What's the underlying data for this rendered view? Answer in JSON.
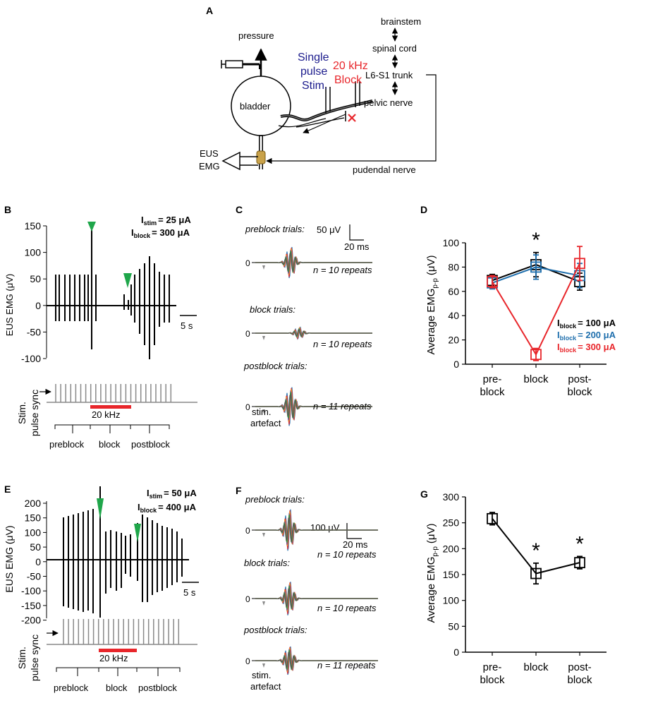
{
  "panels": {
    "A": {
      "letter": "A",
      "pressure": "pressure",
      "bladder": "bladder",
      "single_pulse_stim": [
        "Single",
        "pulse",
        "Stim."
      ],
      "block_label": [
        "20 kHz",
        "Block"
      ],
      "brainstem": "brainstem",
      "spinal_cord": "spinal cord",
      "trunk": "L6-S1 trunk",
      "pelvic_nerve": "pelvic nerve",
      "pudendal_nerve": "pudendal nerve",
      "eus": "EUS",
      "emg": "EMG",
      "colors": {
        "stim": "#1a1a8c",
        "block": "#e8262b",
        "electrode": "#c9a24a"
      }
    },
    "B": {
      "letter": "B",
      "istim_pre": "I",
      "istim_sub": "stim",
      "istim_val": "= 25 μA",
      "iblock_pre": "I",
      "iblock_sub": "block",
      "iblock_val": "= 300 μA",
      "ylabel": "EUS EMG (μV)",
      "yticks": [
        "150",
        "100",
        "50",
        "0",
        "-50",
        "-100"
      ],
      "scale": "5 s",
      "sync_label": [
        "Stim.",
        "pulse sync"
      ],
      "block_bar": "20 kHz",
      "phases": [
        "preblock",
        "block",
        "postblock"
      ]
    },
    "C": {
      "letter": "C",
      "trials": [
        {
          "title": "preblock trials:",
          "n": "n = 10 repeats"
        },
        {
          "title": "block trials:",
          "n": "n = 10 repeats"
        },
        {
          "title": "postblock trials:",
          "n": "n = 11 repeats"
        }
      ],
      "zero": "0",
      "scale_v": "50 μV",
      "scale_t": "20 ms",
      "artefact": [
        "stim.",
        "artefact"
      ]
    },
    "E": {
      "letter": "E",
      "istim_pre": "I",
      "istim_sub": "stim",
      "istim_val": "= 50 μA",
      "iblock_pre": "I",
      "iblock_sub": "block",
      "iblock_val": "= 400 μA",
      "ylabel": "EUS EMG (μV)",
      "yticks": [
        "200",
        "150",
        "100",
        "50",
        "0",
        "-50",
        "-100",
        "-150",
        "-200"
      ],
      "scale": "5 s",
      "sync_label": [
        "Stim.",
        "pulse sync"
      ],
      "block_bar": "20 kHz",
      "phases": [
        "preblock",
        "block",
        "postblock"
      ]
    },
    "F": {
      "letter": "F",
      "trials": [
        {
          "title": "preblock trials:",
          "n": "n = 10 repeats"
        },
        {
          "title": "block trials:",
          "n": "n = 10 repeats"
        },
        {
          "title": "postblock trials:",
          "n": "n = 11 repeats"
        }
      ],
      "zero": "0",
      "scale_v": "100 μV",
      "scale_t": "20 ms",
      "artefact": [
        "stim.",
        "artefact"
      ]
    }
  },
  "chart_data": [
    {
      "id": "D",
      "letter": "D",
      "type": "line",
      "categories": [
        "pre-block",
        "block",
        "post-block"
      ],
      "category_lines": [
        [
          "pre-",
          "block"
        ],
        [
          "block"
        ],
        [
          "post-",
          "block"
        ]
      ],
      "ylabel_main": "Average EMG",
      "ylabel_sub": "p-p",
      "ylabel_unit": "(μV)",
      "ylim": [
        0,
        100
      ],
      "yticks": [
        0,
        20,
        40,
        60,
        80,
        100
      ],
      "series": [
        {
          "name": "I block = 100 μA",
          "legend_pre": "I",
          "legend_sub": "block",
          "legend_val": "= 100 μA",
          "color": "#000000",
          "values": [
            69,
            82,
            68
          ],
          "err": [
            5,
            10,
            7
          ]
        },
        {
          "name": "I block = 200 μA",
          "legend_pre": "I",
          "legend_sub": "block",
          "legend_val": "= 200 μA",
          "color": "#1f6fad",
          "values": [
            67,
            80,
            73
          ],
          "err": [
            5,
            10,
            10
          ]
        },
        {
          "name": "I block = 300 μA",
          "legend_pre": "I",
          "legend_sub": "block",
          "legend_val": "= 300 μA",
          "color": "#e8262b",
          "values": [
            68,
            8,
            83
          ],
          "err": [
            5,
            5,
            14
          ]
        }
      ],
      "annotations": [
        {
          "category": "block",
          "text": "*"
        }
      ]
    },
    {
      "id": "G",
      "letter": "G",
      "type": "line",
      "categories": [
        "pre-block",
        "block",
        "post-block"
      ],
      "category_lines": [
        [
          "pre-",
          "block"
        ],
        [
          "block"
        ],
        [
          "post-",
          "block"
        ]
      ],
      "ylabel_main": "Average EMG",
      "ylabel_sub": "p-p",
      "ylabel_unit": "(μV)",
      "ylim": [
        0,
        300
      ],
      "yticks": [
        0,
        50,
        100,
        150,
        200,
        250,
        300
      ],
      "series": [
        {
          "name": "EMG",
          "color": "#000000",
          "values": [
            258,
            152,
            173
          ],
          "err": [
            12,
            20,
            12
          ]
        }
      ],
      "annotations": [
        {
          "category": "block",
          "text": "*"
        },
        {
          "category": "post-block",
          "text": "*"
        }
      ]
    }
  ]
}
